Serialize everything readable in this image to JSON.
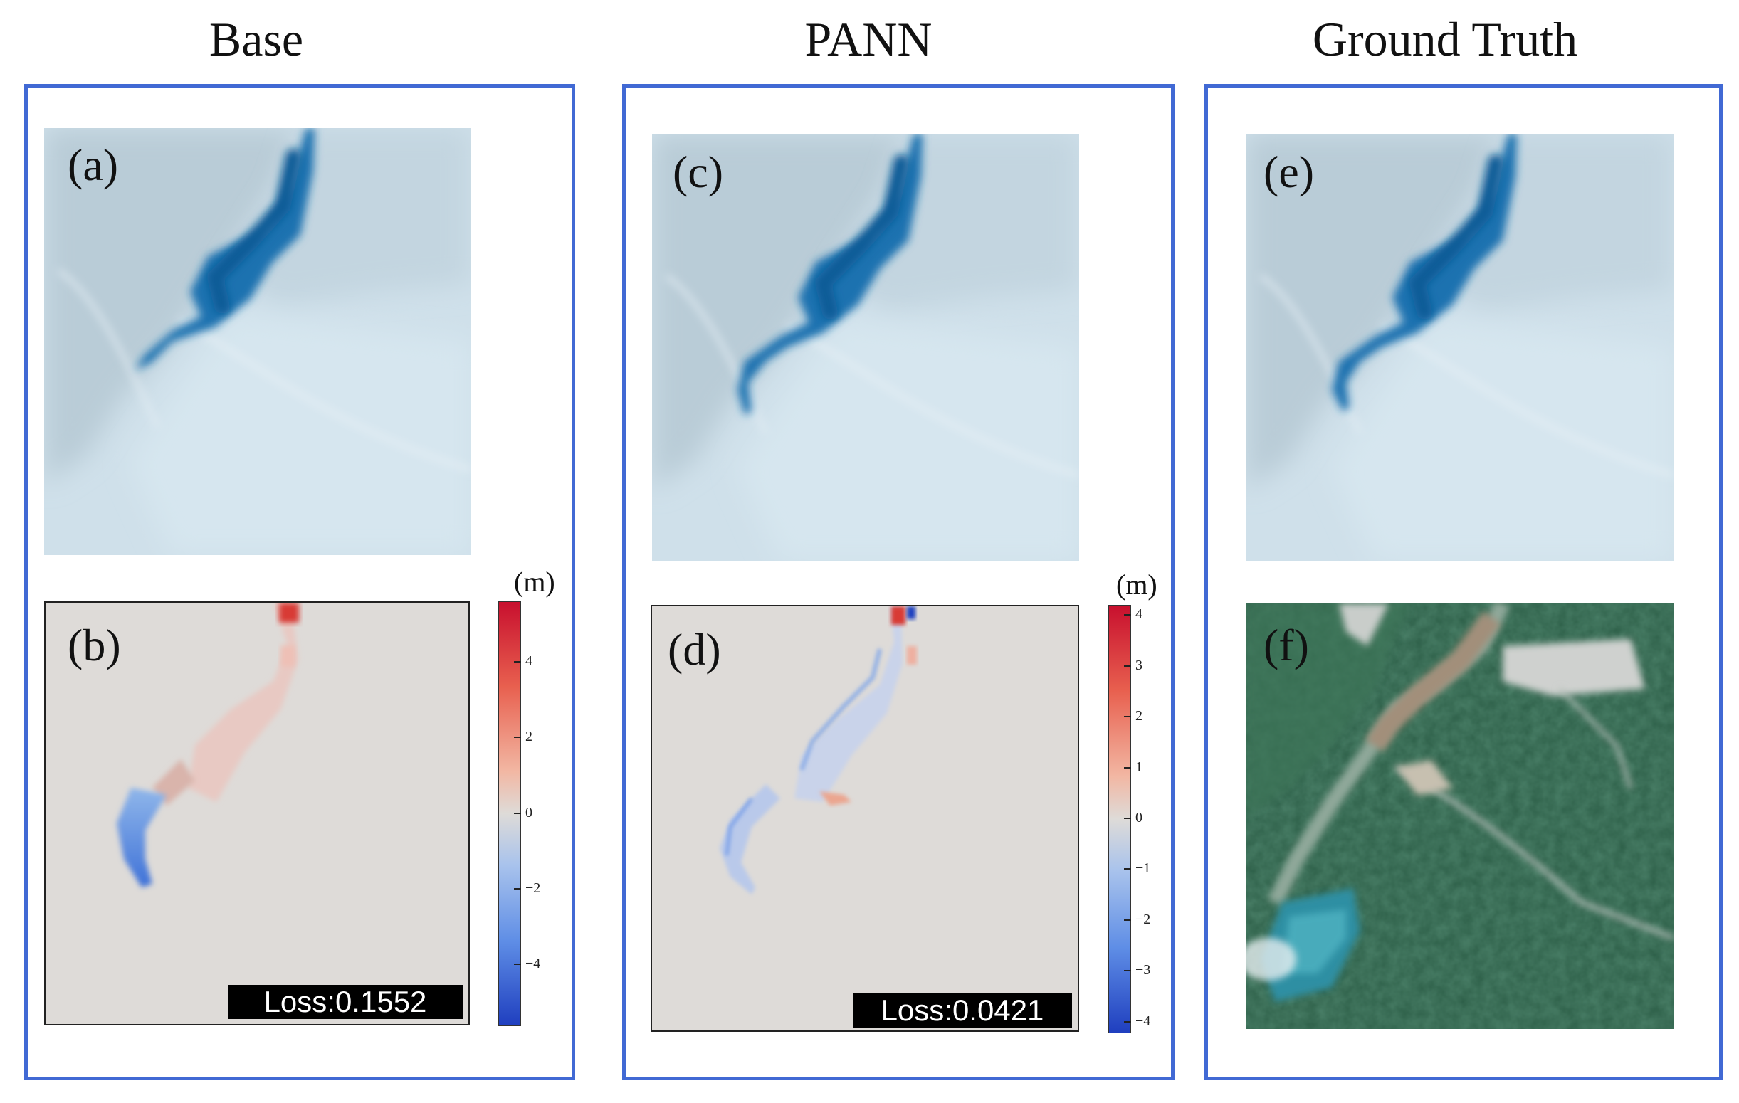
{
  "columns": [
    {
      "title": "Base"
    },
    {
      "title": "PANN"
    },
    {
      "title": "Ground Truth"
    }
  ],
  "panels": {
    "a": {
      "label": "(a)"
    },
    "b": {
      "label": "(b)",
      "loss": "Loss:0.1552"
    },
    "c": {
      "label": "(c)"
    },
    "d": {
      "label": "(d)",
      "loss": "Loss:0.0421"
    },
    "e": {
      "label": "(e)"
    },
    "f": {
      "label": "(f)"
    }
  },
  "colorbars": [
    {
      "unit": "(m)",
      "ticks": [
        "4",
        "2",
        "0",
        "−2",
        "−4"
      ],
      "range": [
        -5.6,
        5.6
      ],
      "tick_values": [
        4,
        2,
        0,
        -2,
        -4
      ]
    },
    {
      "unit": "(m)",
      "ticks": [
        "4",
        "3",
        "2",
        "1",
        "0",
        "−1",
        "−2",
        "−3",
        "−4"
      ],
      "range": [
        -4.2,
        4.2
      ],
      "tick_values": [
        4,
        3,
        2,
        1,
        0,
        -1,
        -2,
        -3,
        -4
      ]
    }
  ],
  "colors": {
    "frame": "#4169d4",
    "error_bg": "#dedbd8",
    "terrain": "#c9dbe5",
    "water": "#1a6aa8",
    "forest": "#2f5e46"
  }
}
